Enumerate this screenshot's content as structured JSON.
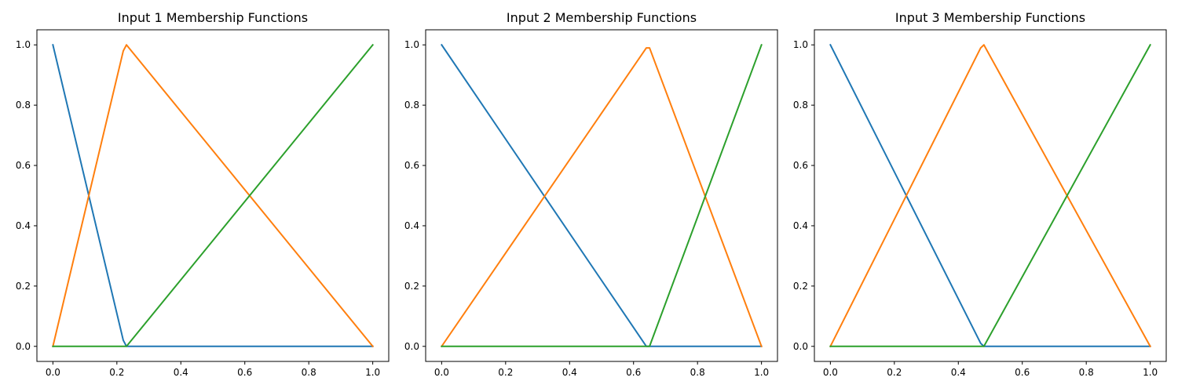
{
  "chart_data": [
    {
      "type": "line",
      "title": "Input 1 Membership Functions",
      "xlabel": "",
      "ylabel": "",
      "xlim": [
        -0.05,
        1.05
      ],
      "ylim": [
        -0.05,
        1.05
      ],
      "xticks": [
        "0.0",
        "0.2",
        "0.4",
        "0.6",
        "0.8",
        "1.0"
      ],
      "yticks": [
        "0.0",
        "0.2",
        "0.4",
        "0.6",
        "0.8",
        "1.0"
      ],
      "grid": false,
      "series": [
        {
          "color": "#1f77b4",
          "x": [
            0.0,
            0.22,
            0.23,
            1.0
          ],
          "y": [
            1.0,
            0.02,
            0.0,
            0.0
          ]
        },
        {
          "color": "#ff7f0e",
          "x": [
            0.0,
            0.22,
            0.23,
            1.0
          ],
          "y": [
            0.0,
            0.98,
            1.0,
            0.0
          ]
        },
        {
          "color": "#2ca02c",
          "x": [
            0.0,
            0.22,
            0.23,
            1.0
          ],
          "y": [
            0.0,
            0.0,
            0.0,
            1.0
          ]
        }
      ]
    },
    {
      "type": "line",
      "title": "Input 2 Membership Functions",
      "xlabel": "",
      "ylabel": "",
      "xlim": [
        -0.05,
        1.05
      ],
      "ylim": [
        -0.05,
        1.05
      ],
      "xticks": [
        "0.0",
        "0.2",
        "0.4",
        "0.6",
        "0.8",
        "1.0"
      ],
      "yticks": [
        "0.0",
        "0.2",
        "0.4",
        "0.6",
        "0.8",
        "1.0"
      ],
      "grid": false,
      "series": [
        {
          "color": "#1f77b4",
          "x": [
            0.0,
            0.64,
            0.65,
            1.0
          ],
          "y": [
            1.0,
            0.0,
            0.0,
            0.0
          ]
        },
        {
          "color": "#ff7f0e",
          "x": [
            0.0,
            0.64,
            0.65,
            1.0
          ],
          "y": [
            0.0,
            0.99,
            0.99,
            0.0
          ]
        },
        {
          "color": "#2ca02c",
          "x": [
            0.0,
            0.64,
            0.65,
            1.0
          ],
          "y": [
            0.0,
            0.0,
            0.0,
            1.0
          ]
        }
      ]
    },
    {
      "type": "line",
      "title": "Input 3 Membership Functions",
      "xlabel": "",
      "ylabel": "",
      "xlim": [
        -0.05,
        1.05
      ],
      "ylim": [
        -0.05,
        1.05
      ],
      "xticks": [
        "0.0",
        "0.2",
        "0.4",
        "0.6",
        "0.8",
        "1.0"
      ],
      "yticks": [
        "0.0",
        "0.2",
        "0.4",
        "0.6",
        "0.8",
        "1.0"
      ],
      "grid": false,
      "series": [
        {
          "color": "#1f77b4",
          "x": [
            0.0,
            0.47,
            0.48,
            1.0
          ],
          "y": [
            1.0,
            0.01,
            0.0,
            0.0
          ]
        },
        {
          "color": "#ff7f0e",
          "x": [
            0.0,
            0.47,
            0.48,
            1.0
          ],
          "y": [
            0.0,
            0.99,
            1.0,
            0.0
          ]
        },
        {
          "color": "#2ca02c",
          "x": [
            0.0,
            0.47,
            0.48,
            1.0
          ],
          "y": [
            0.0,
            0.0,
            0.0,
            1.0
          ]
        }
      ]
    }
  ]
}
